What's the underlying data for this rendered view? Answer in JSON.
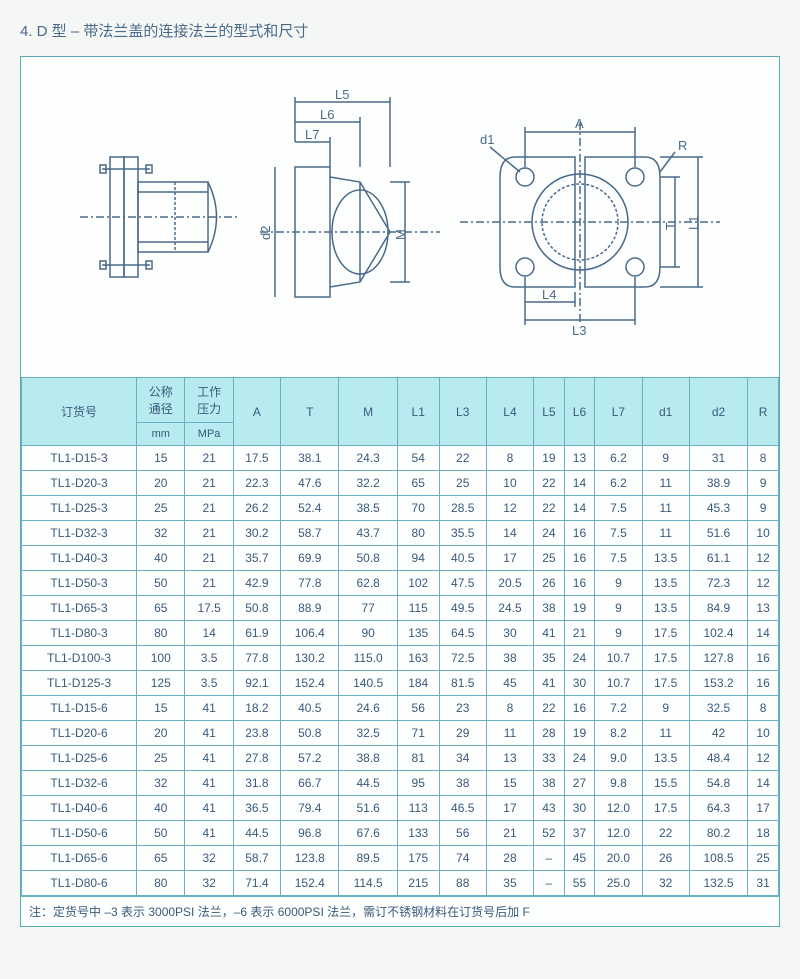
{
  "title": "4. D 型 – 带法兰盖的连接法兰的型式和尺寸",
  "diagram_labels": {
    "L5": "L5",
    "L6": "L6",
    "L7": "L7",
    "d2": "d2",
    "M": "M",
    "d1": "d1",
    "A": "A",
    "R": "R",
    "T": "T",
    "L1": "L1",
    "L4": "L4",
    "L3": "L3"
  },
  "table": {
    "header_row1": [
      "订货号",
      "公称\n通径",
      "工作\n压力",
      "A",
      "T",
      "M",
      "L1",
      "L3",
      "L4",
      "L5",
      "L6",
      "L7",
      "d1",
      "d2",
      "R"
    ],
    "header_row2": [
      "",
      "mm",
      "MPa",
      "",
      "",
      "",
      "",
      "",
      "",
      "",
      "",
      "",
      "",
      "",
      ""
    ],
    "rows": [
      [
        "TL1-D15-3",
        "15",
        "21",
        "17.5",
        "38.1",
        "24.3",
        "54",
        "22",
        "8",
        "19",
        "13",
        "6.2",
        "9",
        "31",
        "8"
      ],
      [
        "TL1-D20-3",
        "20",
        "21",
        "22.3",
        "47.6",
        "32.2",
        "65",
        "25",
        "10",
        "22",
        "14",
        "6.2",
        "11",
        "38.9",
        "9"
      ],
      [
        "TL1-D25-3",
        "25",
        "21",
        "26.2",
        "52.4",
        "38.5",
        "70",
        "28.5",
        "12",
        "22",
        "14",
        "7.5",
        "11",
        "45.3",
        "9"
      ],
      [
        "TL1-D32-3",
        "32",
        "21",
        "30.2",
        "58.7",
        "43.7",
        "80",
        "35.5",
        "14",
        "24",
        "16",
        "7.5",
        "11",
        "51.6",
        "10"
      ],
      [
        "TL1-D40-3",
        "40",
        "21",
        "35.7",
        "69.9",
        "50.8",
        "94",
        "40.5",
        "17",
        "25",
        "16",
        "7.5",
        "13.5",
        "61.1",
        "12"
      ],
      [
        "TL1-D50-3",
        "50",
        "21",
        "42.9",
        "77.8",
        "62.8",
        "102",
        "47.5",
        "20.5",
        "26",
        "16",
        "9",
        "13.5",
        "72.3",
        "12"
      ],
      [
        "TL1-D65-3",
        "65",
        "17.5",
        "50.8",
        "88.9",
        "77",
        "115",
        "49.5",
        "24.5",
        "38",
        "19",
        "9",
        "13.5",
        "84.9",
        "13"
      ],
      [
        "TL1-D80-3",
        "80",
        "14",
        "61.9",
        "106.4",
        "90",
        "135",
        "64.5",
        "30",
        "41",
        "21",
        "9",
        "17.5",
        "102.4",
        "14"
      ],
      [
        "TL1-D100-3",
        "100",
        "3.5",
        "77.8",
        "130.2",
        "115.0",
        "163",
        "72.5",
        "38",
        "35",
        "24",
        "10.7",
        "17.5",
        "127.8",
        "16"
      ],
      [
        "TL1-D125-3",
        "125",
        "3.5",
        "92.1",
        "152.4",
        "140.5",
        "184",
        "81.5",
        "45",
        "41",
        "30",
        "10.7",
        "17.5",
        "153.2",
        "16"
      ],
      [
        "TL1-D15-6",
        "15",
        "41",
        "18.2",
        "40.5",
        "24.6",
        "56",
        "23",
        "8",
        "22",
        "16",
        "7.2",
        "9",
        "32.5",
        "8"
      ],
      [
        "TL1-D20-6",
        "20",
        "41",
        "23.8",
        "50.8",
        "32.5",
        "71",
        "29",
        "11",
        "28",
        "19",
        "8.2",
        "11",
        "42",
        "10"
      ],
      [
        "TL1-D25-6",
        "25",
        "41",
        "27.8",
        "57.2",
        "38.8",
        "81",
        "34",
        "13",
        "33",
        "24",
        "9.0",
        "13.5",
        "48.4",
        "12"
      ],
      [
        "TL1-D32-6",
        "32",
        "41",
        "31.8",
        "66.7",
        "44.5",
        "95",
        "38",
        "15",
        "38",
        "27",
        "9.8",
        "15.5",
        "54.8",
        "14"
      ],
      [
        "TL1-D40-6",
        "40",
        "41",
        "36.5",
        "79.4",
        "51.6",
        "113",
        "46.5",
        "17",
        "43",
        "30",
        "12.0",
        "17.5",
        "64.3",
        "17"
      ],
      [
        "TL1-D50-6",
        "50",
        "41",
        "44.5",
        "96.8",
        "67.6",
        "133",
        "56",
        "21",
        "52",
        "37",
        "12.0",
        "22",
        "80.2",
        "18"
      ],
      [
        "TL1-D65-6",
        "65",
        "32",
        "58.7",
        "123.8",
        "89.5",
        "175",
        "74",
        "28",
        "–",
        "45",
        "20.0",
        "26",
        "108.5",
        "25"
      ],
      [
        "TL1-D80-6",
        "80",
        "32",
        "71.4",
        "152.4",
        "114.5",
        "215",
        "88",
        "35",
        "–",
        "55",
        "25.0",
        "32",
        "132.5",
        "31"
      ]
    ]
  },
  "footnote": "注：定货号中 –3 表示 3000PSI 法兰，–6 表示 6000PSI 法兰，需订不锈钢材料在订货号后加 F",
  "colors": {
    "header_bg": "#b8ebef",
    "border": "#6ab0c0",
    "text": "#3a5a7a",
    "diagram_stroke": "#4a6a8a"
  }
}
